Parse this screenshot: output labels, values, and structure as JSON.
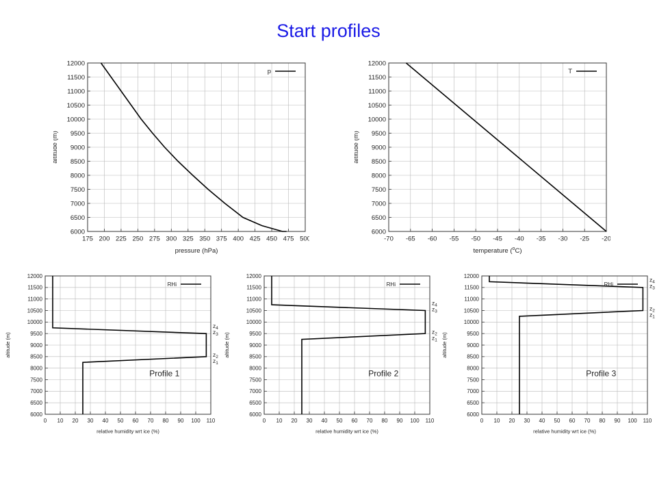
{
  "slide": {
    "title": "Start profiles"
  },
  "chart_data": [
    {
      "type": "line",
      "xlabel": "pressure (hPa)",
      "ylabel": "altitude (m)",
      "xlim": [
        175,
        500
      ],
      "ylim": [
        6000,
        12000
      ],
      "xticks": [
        175,
        200,
        225,
        250,
        275,
        300,
        325,
        350,
        375,
        400,
        425,
        450,
        475,
        500
      ],
      "yticks": [
        6000,
        6500,
        7000,
        7500,
        8000,
        8500,
        9000,
        9500,
        10000,
        10500,
        11000,
        11500,
        12000
      ],
      "grid": true,
      "legend": "top-right",
      "series": [
        {
          "name": "p",
          "x": [
            195,
            210,
            225,
            240,
            255,
            272,
            290,
            310,
            332,
            355,
            380,
            407,
            436,
            466,
            472
          ],
          "y": [
            12000,
            11500,
            11000,
            10500,
            10000,
            9500,
            9000,
            8500,
            8000,
            7500,
            7000,
            6500,
            6200,
            6000,
            6000
          ]
        }
      ]
    },
    {
      "type": "line",
      "xlabel": "temperature (",
      "xlabel_sup": "o",
      "xlabel_end": "C)",
      "ylabel": "altitude (m)",
      "xlim": [
        -70,
        -20
      ],
      "ylim": [
        6000,
        12000
      ],
      "xticks": [
        -70,
        -65,
        -60,
        -55,
        -50,
        -45,
        -40,
        -35,
        -30,
        -25,
        -20
      ],
      "yticks": [
        6000,
        6500,
        7000,
        7500,
        8000,
        8500,
        9000,
        9500,
        10000,
        10500,
        11000,
        11500,
        12000
      ],
      "grid": true,
      "legend": "top-right",
      "series": [
        {
          "name": "T",
          "x": [
            -66,
            -20
          ],
          "y": [
            12000,
            6000
          ]
        }
      ]
    },
    {
      "type": "line",
      "xlabel": "relative humidity wrt ice (%)",
      "ylabel": "altitude (m)",
      "annotation": "Profile 1",
      "xlim": [
        0,
        110
      ],
      "ylim": [
        6000,
        12000
      ],
      "xticks": [
        0,
        10,
        20,
        30,
        40,
        50,
        60,
        70,
        80,
        90,
        100,
        110
      ],
      "yticks": [
        6000,
        6500,
        7000,
        7500,
        8000,
        8500,
        9000,
        9500,
        10000,
        10500,
        11000,
        11500,
        12000
      ],
      "grid": true,
      "legend": "top-right",
      "series": [
        {
          "name": "RHi",
          "x": [
            25,
            25,
            107,
            107,
            5,
            5
          ],
          "y": [
            6000,
            8250,
            8500,
            9500,
            9750,
            12000
          ]
        }
      ],
      "levels": [
        {
          "label": "z",
          "sub": "1",
          "value": 8250
        },
        {
          "label": "z",
          "sub": "2",
          "value": 8500
        },
        {
          "label": "z",
          "sub": "3",
          "value": 9500
        },
        {
          "label": "z",
          "sub": "4",
          "value": 9750
        }
      ]
    },
    {
      "type": "line",
      "xlabel": "relative humidity wrt ice (%)",
      "ylabel": "altitude (m)",
      "annotation": "Profile 2",
      "xlim": [
        0,
        110
      ],
      "ylim": [
        6000,
        12000
      ],
      "xticks": [
        0,
        10,
        20,
        30,
        40,
        50,
        60,
        70,
        80,
        90,
        100,
        110
      ],
      "yticks": [
        6000,
        6500,
        7000,
        7500,
        8000,
        8500,
        9000,
        9500,
        10000,
        10500,
        11000,
        11500,
        12000
      ],
      "grid": true,
      "legend": "top-right",
      "series": [
        {
          "name": "RHi",
          "x": [
            25,
            25,
            107,
            107,
            5,
            5
          ],
          "y": [
            6000,
            9250,
            9500,
            10500,
            10750,
            12000
          ]
        }
      ],
      "levels": [
        {
          "label": "z",
          "sub": "1",
          "value": 9250
        },
        {
          "label": "z",
          "sub": "2",
          "value": 9500
        },
        {
          "label": "z",
          "sub": "3",
          "value": 10500
        },
        {
          "label": "z",
          "sub": "4",
          "value": 10750
        }
      ]
    },
    {
      "type": "line",
      "xlabel": "relative humidity wrt ice (%)",
      "ylabel": "altitude (m)",
      "annotation": "Profile 3",
      "xlim": [
        0,
        110
      ],
      "ylim": [
        6000,
        12000
      ],
      "xticks": [
        0,
        10,
        20,
        30,
        40,
        50,
        60,
        70,
        80,
        90,
        100,
        110
      ],
      "yticks": [
        6000,
        6500,
        7000,
        7500,
        8000,
        8500,
        9000,
        9500,
        10000,
        10500,
        11000,
        11500,
        12000
      ],
      "grid": true,
      "legend": "top-right",
      "series": [
        {
          "name": "RHi",
          "x": [
            25,
            25,
            107,
            107,
            5,
            5
          ],
          "y": [
            6000,
            10250,
            10500,
            11500,
            11750,
            12000
          ]
        }
      ],
      "levels": [
        {
          "label": "z",
          "sub": "1",
          "value": 10250
        },
        {
          "label": "z",
          "sub": "2",
          "value": 10500
        },
        {
          "label": "z",
          "sub": "3",
          "value": 11500
        },
        {
          "label": "z",
          "sub": "4",
          "value": 11750
        }
      ]
    }
  ]
}
